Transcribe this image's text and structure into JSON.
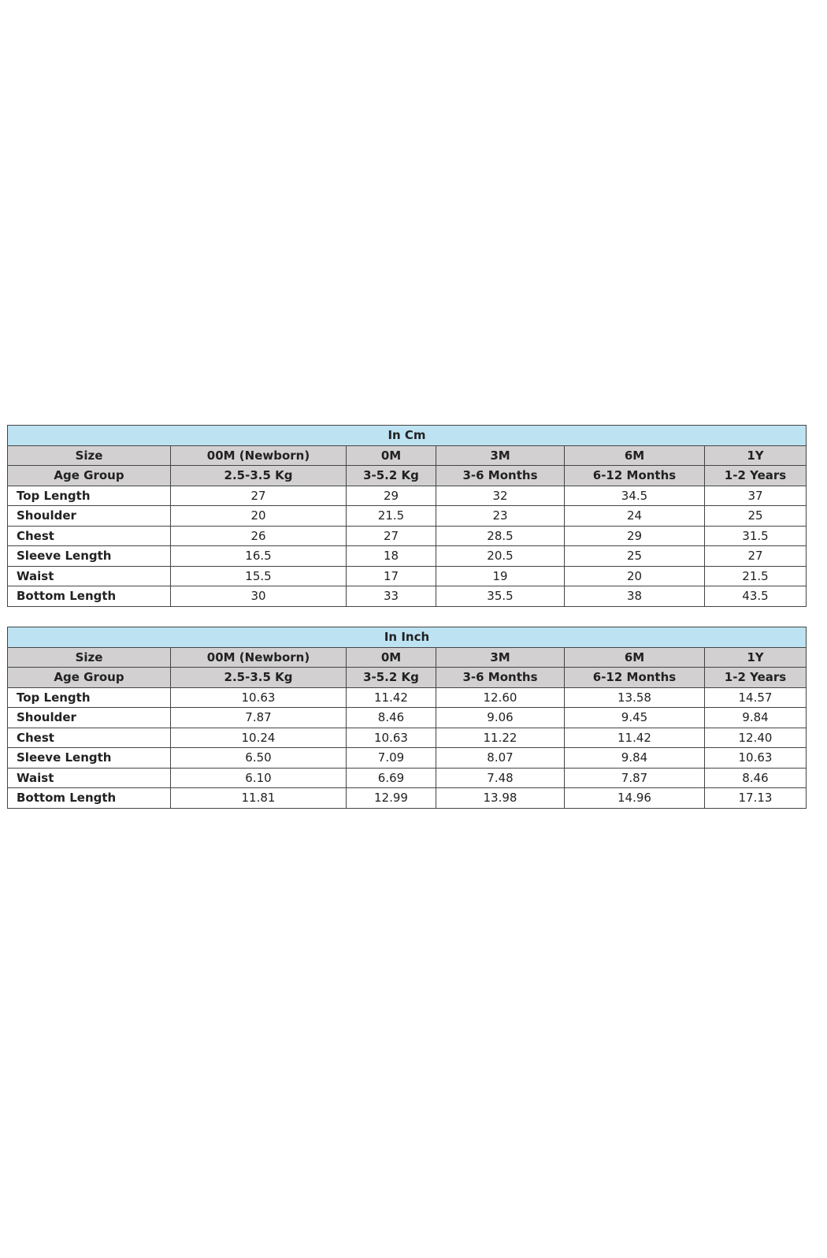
{
  "tables": [
    {
      "title": "In Cm",
      "size_row": [
        "Size",
        "00M (Newborn)",
        "0M",
        "3M",
        "6M",
        "1Y"
      ],
      "age_row": [
        "Age Group",
        "2.5-3.5 Kg",
        "3-5.2 Kg",
        "3-6 Months",
        "6-12 Months",
        "1-2 Years"
      ],
      "rows": [
        [
          "Top Length",
          "27",
          "29",
          "32",
          "34.5",
          "37"
        ],
        [
          "Shoulder",
          "20",
          "21.5",
          "23",
          "24",
          "25"
        ],
        [
          "Chest",
          "26",
          "27",
          "28.5",
          "29",
          "31.5"
        ],
        [
          "Sleeve Length",
          "16.5",
          "18",
          "20.5",
          "25",
          "27"
        ],
        [
          "Waist",
          "15.5",
          "17",
          "19",
          "20",
          "21.5"
        ],
        [
          "Bottom Length",
          "30",
          "33",
          "35.5",
          "38",
          "43.5"
        ]
      ]
    },
    {
      "title": "In Inch",
      "size_row": [
        "Size",
        "00M (Newborn)",
        "0M",
        "3M",
        "6M",
        "1Y"
      ],
      "age_row": [
        "Age Group",
        "2.5-3.5 Kg",
        "3-5.2 Kg",
        "3-6 Months",
        "6-12 Months",
        "1-2 Years"
      ],
      "rows": [
        [
          "Top Length",
          "10.63",
          "11.42",
          "12.60",
          "13.58",
          "14.57"
        ],
        [
          "Shoulder",
          "7.87",
          "8.46",
          "9.06",
          "9.45",
          "9.84"
        ],
        [
          "Chest",
          "10.24",
          "10.63",
          "11.22",
          "11.42",
          "12.40"
        ],
        [
          "Sleeve Length",
          "6.50",
          "7.09",
          "8.07",
          "9.84",
          "10.63"
        ],
        [
          "Waist",
          "6.10",
          "6.69",
          "7.48",
          "7.87",
          "8.46"
        ],
        [
          "Bottom Length",
          "11.81",
          "12.99",
          "13.98",
          "14.96",
          "17.13"
        ]
      ]
    }
  ],
  "colors": {
    "title_bg": "#bde3f3",
    "header_bg": "#d2d0d0",
    "border": "#444444"
  }
}
